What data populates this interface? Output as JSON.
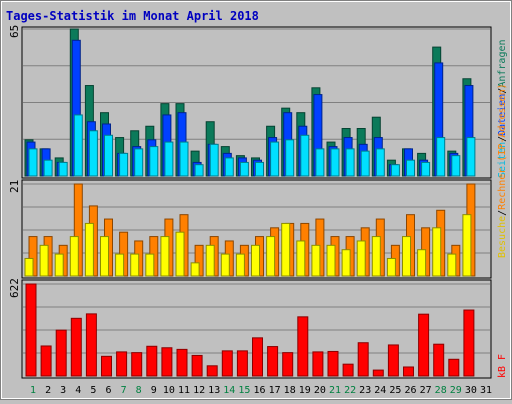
{
  "title": "Tages-Statistik im Monat April 2018",
  "colors": {
    "background": "#c0c0c0",
    "title": "#0000c0",
    "anfragen": "#0b7a5a",
    "dateien": "#0040ff",
    "seiten": "#00e0ff",
    "rechner": "#ff8000",
    "besuche": "#ffff00",
    "kb": "#ff0000",
    "weekend_label": "#008040",
    "weekday_label": "#000000"
  },
  "chart_data": [
    {
      "type": "bar",
      "panel": "requests",
      "ymax_label": "65",
      "ylim": [
        0,
        65
      ],
      "legend": {
        "anfragen": "Anfragen",
        "slash1": "/",
        "dateien": "Dateien",
        "slash2": "/",
        "seiten": "Seiten"
      },
      "series": [
        {
          "name": "Anfragen",
          "values": [
            16,
            12,
            8,
            65,
            40,
            28,
            17,
            20,
            22,
            32,
            32,
            11,
            24,
            13,
            9,
            8,
            22,
            30,
            28,
            39,
            15,
            21,
            21,
            26,
            7,
            12,
            10,
            57,
            11,
            43
          ]
        },
        {
          "name": "Dateien",
          "values": [
            15,
            12,
            6,
            60,
            24,
            23,
            10,
            13,
            16,
            27,
            28,
            6,
            14,
            10,
            8,
            7,
            17,
            28,
            22,
            36,
            13,
            17,
            14,
            17,
            5,
            12,
            7,
            50,
            10,
            40
          ]
        },
        {
          "name": "Seiten",
          "values": [
            12,
            7,
            6,
            27,
            20,
            18,
            10,
            12,
            13,
            15,
            15,
            5,
            14,
            8,
            6,
            6,
            15,
            16,
            18,
            12,
            12,
            12,
            11,
            12,
            5,
            7,
            6,
            17,
            9,
            17
          ]
        }
      ]
    },
    {
      "type": "bar",
      "panel": "visits",
      "ymax_label": "21",
      "ylim": [
        0,
        21
      ],
      "legend": {
        "rechner": "Rechner (IP-Adressen)",
        "slash": "/",
        "besuche": "Besuche"
      },
      "series": [
        {
          "name": "Rechner (IP-Adressen)",
          "values": [
            9,
            9,
            7,
            21,
            16,
            13,
            10,
            8,
            9,
            13,
            14,
            7,
            9,
            8,
            7,
            9,
            11,
            12,
            12,
            13,
            9,
            9,
            11,
            13,
            7,
            14,
            11,
            15,
            7,
            21
          ]
        },
        {
          "name": "Besuche",
          "values": [
            4,
            7,
            5,
            9,
            12,
            9,
            5,
            5,
            5,
            9,
            10,
            3,
            7,
            5,
            5,
            7,
            9,
            12,
            8,
            7,
            7,
            6,
            8,
            9,
            4,
            9,
            6,
            11,
            5,
            14
          ]
        }
      ]
    },
    {
      "type": "bar",
      "panel": "kb",
      "ymax_label": "622",
      "ylim": [
        0,
        622
      ],
      "legend": {
        "kb": "kB F"
      },
      "series": [
        {
          "name": "kB F",
          "values": [
            622,
            203,
            310,
            390,
            420,
            133,
            163,
            158,
            201,
            191,
            180,
            139,
            69,
            170,
            170,
            258,
            199,
            158,
            400,
            163,
            166,
            80,
            225,
            40,
            210,
            61,
            418,
            215,
            113,
            446
          ]
        }
      ]
    }
  ],
  "days": [
    "1",
    "2",
    "3",
    "4",
    "5",
    "6",
    "7",
    "8",
    "9",
    "10",
    "11",
    "12",
    "13",
    "14",
    "15",
    "16",
    "17",
    "18",
    "19",
    "20",
    "21",
    "22",
    "23",
    "24",
    "25",
    "26",
    "27",
    "28",
    "29",
    "30",
    "31"
  ],
  "weekend_days": [
    1,
    7,
    8,
    14,
    15,
    21,
    22,
    28,
    29
  ]
}
